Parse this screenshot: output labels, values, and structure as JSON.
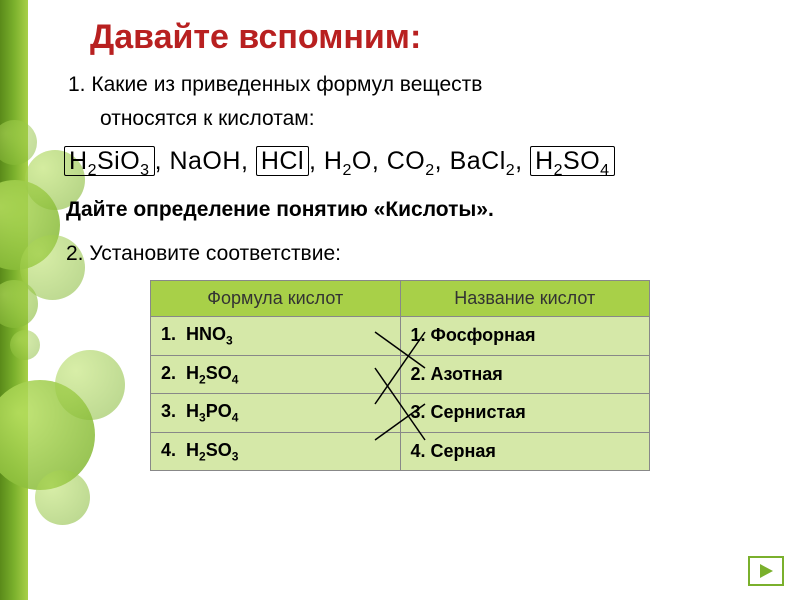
{
  "title": "Давайте вспомним:",
  "q1_line1": "1. Какие из приведенных формул веществ",
  "q1_line2": "относятся к кислотам:",
  "formulas": {
    "f1": "H",
    "f1s": "2",
    "f1b": "SiO",
    "f1bs": "3",
    "f2": "NaOH",
    "f3": "HCl",
    "f4": "H",
    "f4s": "2",
    "f4b": "O",
    "f5": "CO",
    "f5s": "2",
    "f6": "BaCl",
    "f6s": "2",
    "f7": "H",
    "f7s": "2",
    "f7b": "SO",
    "f7bs": "4"
  },
  "def": "Дайте определение понятию «Кислоты».",
  "q2": "2. Установите соответствие:",
  "table": {
    "header_left": "Формула кислот",
    "header_right": "Название кислот",
    "rows": [
      {
        "n": "1.",
        "f": "HNO",
        "fs": "3",
        "name": "1.  Фосфорная"
      },
      {
        "n": "2.",
        "f": "H",
        "fs": "2",
        "f2": "SO",
        "f2s": "4",
        "name": "2.  Азотная"
      },
      {
        "n": "3.",
        "f": "H",
        "fs": "3",
        "f2": "PO",
        "f2s": "4",
        "name": "3.  Сернистая"
      },
      {
        "n": "4.",
        "f": "H",
        "fs": "2",
        "f2": "SO",
        "f2s": "3",
        "name": "4.  Серная"
      }
    ]
  },
  "colors": {
    "title": "#b82020",
    "accent": "#7ab02c",
    "th_bg": "#a8d048",
    "td_bg": "#d5e8a8",
    "line": "#000000"
  },
  "match_lines": [
    {
      "from_row": 0,
      "to_row": 1
    },
    {
      "from_row": 1,
      "to_row": 3
    },
    {
      "from_row": 2,
      "to_row": 0
    },
    {
      "from_row": 3,
      "to_row": 2
    }
  ]
}
